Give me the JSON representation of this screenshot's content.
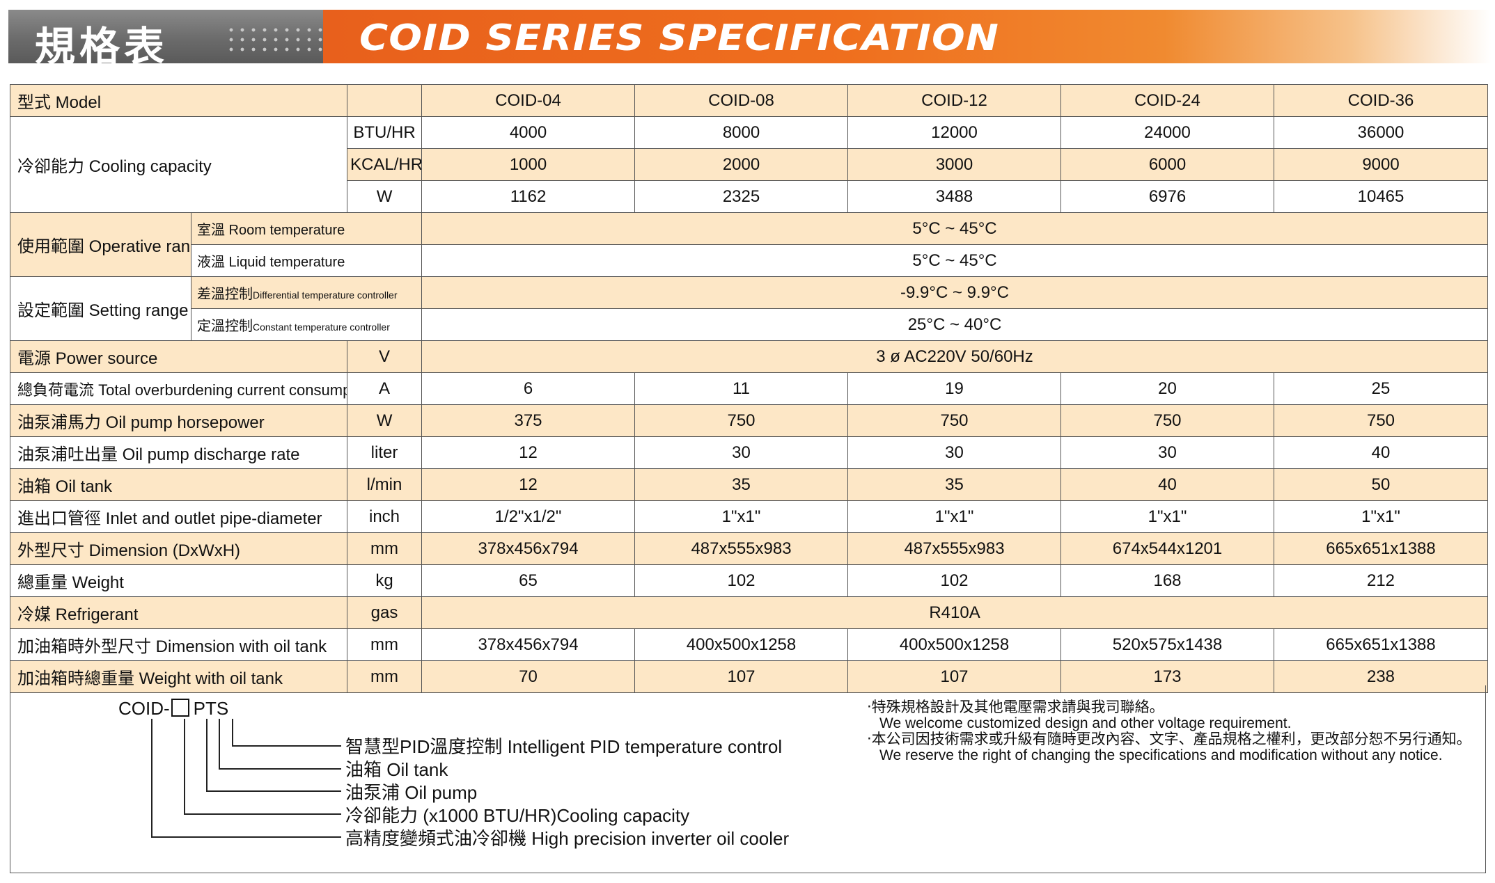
{
  "header": {
    "title_cn": "規格表",
    "title_en": "COID SERIES SPECIFICATION",
    "colors": {
      "accent": "#ef6f1e",
      "grey": "#6b6b6b",
      "row_highlight": "#fde7c6"
    }
  },
  "table": {
    "model_label": "型式 Model",
    "models": [
      "COID-04",
      "COID-08",
      "COID-12",
      "COID-24",
      "COID-36"
    ],
    "cooling_label": "冷卻能力 Cooling capacity",
    "cooling_rows": [
      {
        "unit": "BTU/HR",
        "values": [
          "4000",
          "8000",
          "12000",
          "24000",
          "36000"
        ]
      },
      {
        "unit": "KCAL/HR",
        "values": [
          "1000",
          "2000",
          "3000",
          "6000",
          "9000"
        ]
      },
      {
        "unit": "W",
        "values": [
          "1162",
          "2325",
          "3488",
          "6976",
          "10465"
        ]
      }
    ],
    "operative_label": "使用範圍 Operative range",
    "room_temp_label": "室溫 Room temperature",
    "room_temp_value": "5°C ~ 45°C",
    "liquid_temp_label": "液溫 Liquid temperature",
    "liquid_temp_value": "5°C ~ 45°C",
    "setting_label": "設定範圍 Setting range",
    "diff_ctrl_cn": "差溫控制",
    "diff_ctrl_en": "Differential temperature controller",
    "diff_ctrl_value": "-9.9°C ~ 9.9°C",
    "const_ctrl_cn": "定溫控制",
    "const_ctrl_en": "Constant temperature controller",
    "const_ctrl_value": "25°C ~ 40°C",
    "power_label": "電源 Power source",
    "power_unit": "V",
    "power_value": "3 ø AC220V  50/60Hz",
    "rows": [
      {
        "label": "總負荷電流 Total overburdening current consumption",
        "unit": "A",
        "values": [
          "6",
          "11",
          "19",
          "20",
          "25"
        ]
      },
      {
        "label": "油泵浦馬力  Oil pump horsepower",
        "unit": "W",
        "values": [
          "375",
          "750",
          "750",
          "750",
          "750"
        ]
      },
      {
        "label": "油泵浦吐出量 Oil pump discharge rate",
        "unit": "liter",
        "values": [
          "12",
          "30",
          "30",
          "30",
          "40"
        ]
      },
      {
        "label": "油箱  Oil tank",
        "unit": "l/min",
        "values": [
          "12",
          "35",
          "35",
          "40",
          "50"
        ]
      },
      {
        "label": "進出口管徑 Inlet and outlet pipe-diameter",
        "unit": "inch",
        "values": [
          "1/2\"x1/2\"",
          "1\"x1\"",
          "1\"x1\"",
          "1\"x1\"",
          "1\"x1\""
        ]
      },
      {
        "label": "外型尺寸 Dimension (DxWxH)",
        "unit": "mm",
        "values": [
          "378x456x794",
          "487x555x983",
          "487x555x983",
          "674x544x1201",
          "665x651x1388"
        ]
      },
      {
        "label": "總重量 Weight",
        "unit": "kg",
        "values": [
          "65",
          "102",
          "102",
          "168",
          "212"
        ]
      }
    ],
    "refrigerant_label": "冷媒 Refrigerant",
    "refrigerant_unit": "gas",
    "refrigerant_value": "R410A",
    "rows2": [
      {
        "label": "加油箱時外型尺寸 Dimension with oil tank",
        "unit": "mm",
        "values": [
          "378x456x794",
          "400x500x1258",
          "400x500x1258",
          "520x575x1438",
          "665x651x1388"
        ]
      },
      {
        "label": "加油箱時總重量 Weight with oil tank",
        "unit": "mm",
        "values": [
          "70",
          "107",
          "107",
          "173",
          "238"
        ]
      }
    ]
  },
  "code_legend": {
    "prefix": "COID-",
    "suffix": "PTS",
    "items": [
      "智慧型PID溫度控制 Intelligent PID temperature control",
      "油箱 Oil tank",
      "油泵浦 Oil pump",
      "冷卻能力 (x1000 BTU/HR)Cooling capacity",
      "高精度變頻式油冷卻機  High precision inverter oil cooler"
    ]
  },
  "notes": [
    "‧特殊規格設計及其他電壓需求請與我司聯絡。",
    "  We welcome customized design and other voltage requirement.",
    "‧本公司因技術需求或升級有隨時更改內容、文字、產品規格之權利，更改部分恕不另行通知。",
    "  We reserve the right of changing the specifications and modification without any notice."
  ]
}
